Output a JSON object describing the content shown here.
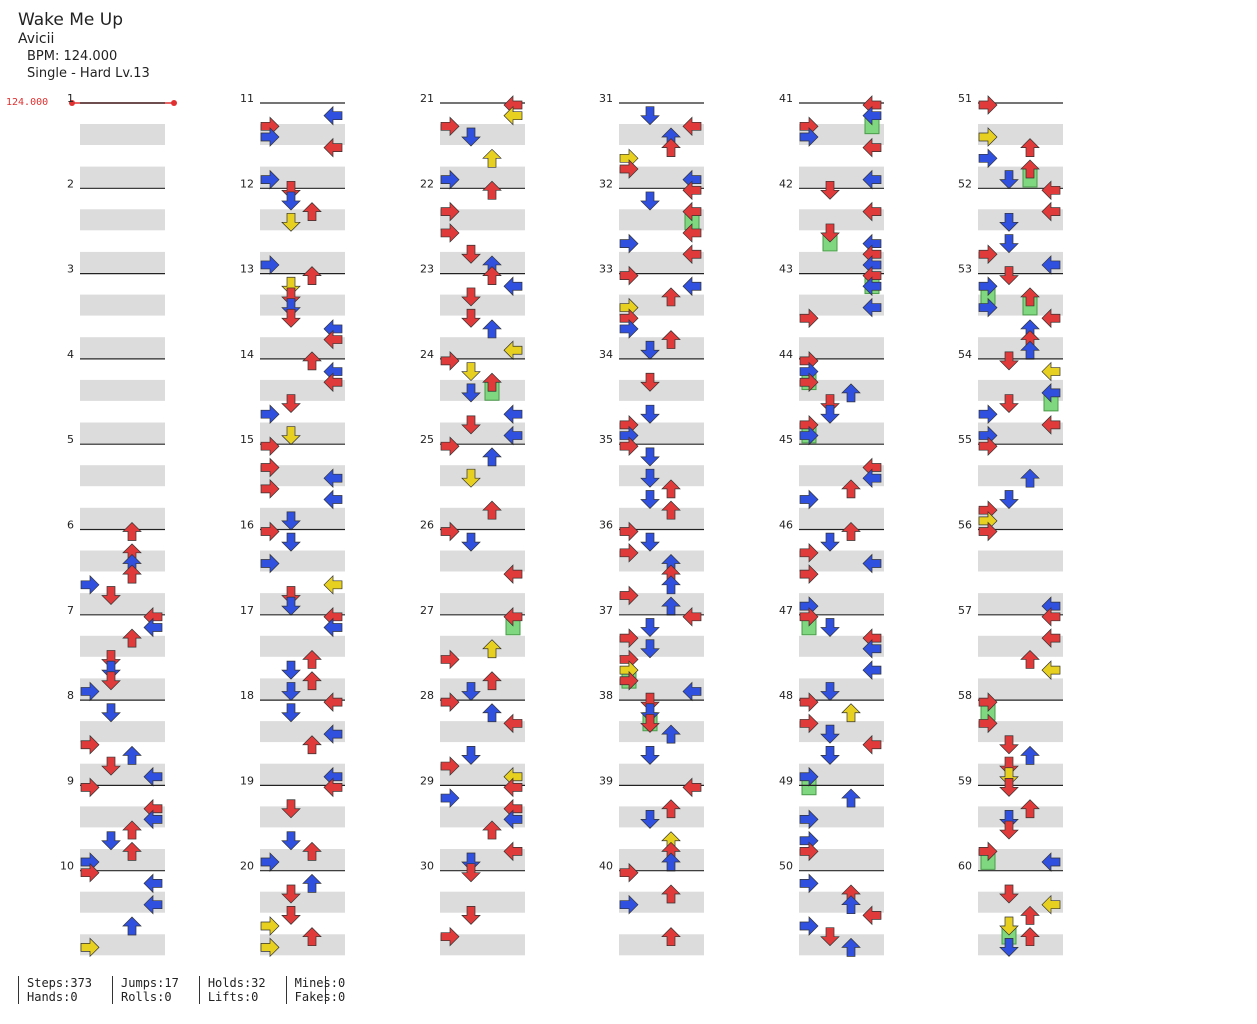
{
  "song": {
    "title": "Wake Me Up",
    "artist": "Avicii",
    "bpm": "BPM: 124.000",
    "difficulty": "Single - Hard  Lv.13"
  },
  "bpm_marker": "124.000",
  "measures": [
    "1",
    "2",
    "3",
    "4",
    "5",
    "6",
    "7",
    "8",
    "9",
    "10",
    "11",
    "12",
    "13",
    "14",
    "15",
    "16",
    "17",
    "18",
    "19",
    "20",
    "21",
    "22",
    "23",
    "24",
    "25",
    "26",
    "27",
    "28",
    "29",
    "30",
    "31",
    "32",
    "33",
    "34",
    "35",
    "36",
    "37",
    "38",
    "39",
    "40",
    "41",
    "42",
    "43",
    "44",
    "45",
    "46",
    "47",
    "48",
    "49",
    "50",
    "51",
    "52",
    "53",
    "54",
    "55",
    "56",
    "57",
    "58",
    "59",
    "60"
  ],
  "colors": {
    "quarter": "#e03a3a",
    "eighth": "#3050e0",
    "sixteenth": "#e8d020",
    "hold": "#7fd77f"
  },
  "stats": [
    {
      "a": "Steps:373",
      "b": "Hands:0"
    },
    {
      "a": "Jumps:17",
      "b": "Rolls:0"
    },
    {
      "a": "Holds:32",
      "b": "Lifts:0"
    },
    {
      "a": "Mines:0",
      "b": "Fakes:0"
    }
  ]
}
